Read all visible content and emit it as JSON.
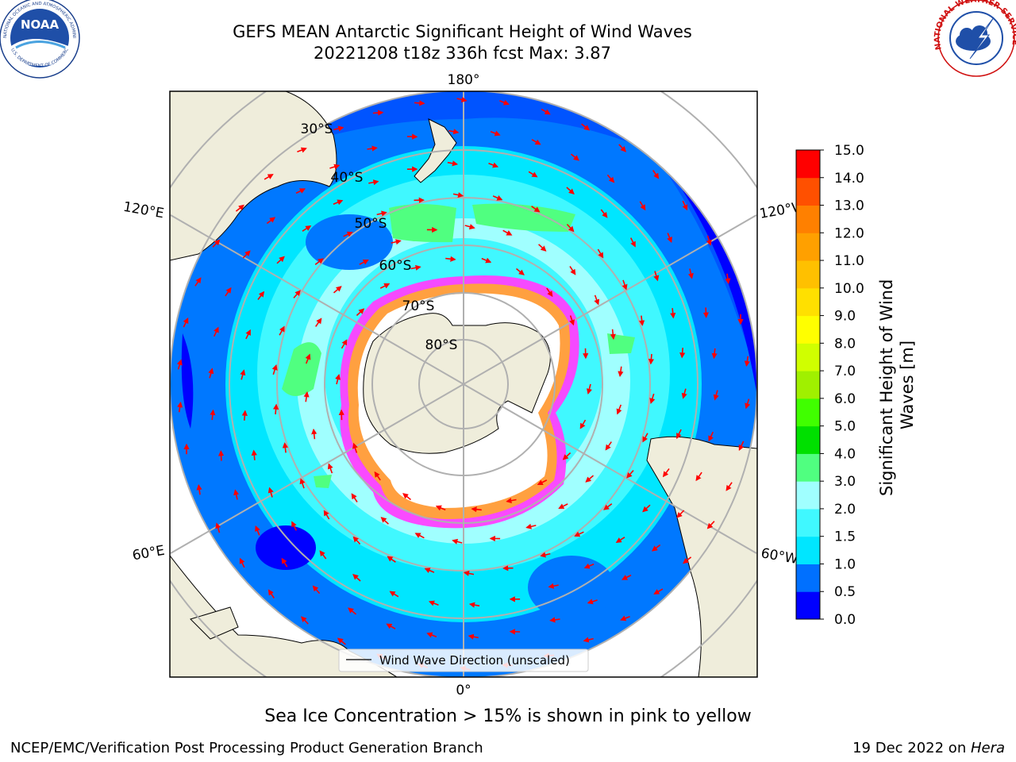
{
  "title": {
    "line1": "GEFS MEAN Antarctic Significant Height of Wind Waves",
    "line2": "20221208 t18z 336h fcst   Max: 3.87"
  },
  "logos": {
    "noaa_text": "NOAA",
    "noaa_ring": "NATIONAL OCEANIC AND ATMOSPHERIC ADMINISTRATION",
    "noaa_ring_bottom": "U.S. DEPARTMENT OF COMMERCE",
    "nws_ring": "NATIONAL WEATHER SERVICE"
  },
  "map": {
    "lon_labels": {
      "top": "180°",
      "bottom": "0°",
      "left_upper": "120°E",
      "left_lower": "60°E",
      "right_upper": "120°W",
      "right_lower": "60°W"
    },
    "lat_labels": [
      "30°S",
      "40°S",
      "50°S",
      "60°S",
      "70°S",
      "80°S"
    ],
    "legend_label": "Wind Wave Direction (unscaled)"
  },
  "colorbar": {
    "label": "Significant Height of Wind Waves [m]",
    "ticks": [
      "0.0",
      "0.5",
      "1.0",
      "1.5",
      "2.0",
      "3.0",
      "4.0",
      "5.0",
      "6.0",
      "7.0",
      "8.0",
      "9.0",
      "10.0",
      "11.0",
      "12.0",
      "13.0",
      "14.0",
      "15.0"
    ],
    "colors": [
      "#0000ff",
      "#0070ff",
      "#00e6ff",
      "#40f8ff",
      "#a0ffff",
      "#50ff80",
      "#00e000",
      "#40ff00",
      "#a0f000",
      "#d0ff00",
      "#ffff00",
      "#ffe000",
      "#ffc000",
      "#ffa000",
      "#ff8000",
      "#ff5000",
      "#ff0000"
    ]
  },
  "caption": "Sea Ice Concentration > 15% is shown in pink to yellow",
  "footer": {
    "left": "NCEP/EMC/Verification Post Processing Product Generation Branch",
    "right_prefix": "19 Dec 2022 on ",
    "right_host": "Hera"
  }
}
